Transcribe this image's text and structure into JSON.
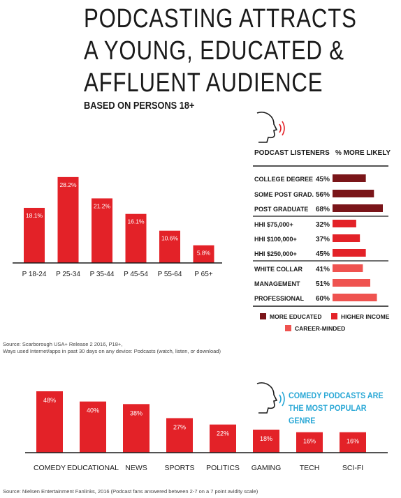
{
  "title_lines": [
    "PODCASTING ATTRACTS",
    "A YOUNG, EDUCATED &",
    "AFFLUENT AUDIENCE"
  ],
  "subtitle": "BASED ON PERSONS 18+",
  "colors": {
    "red": "#e32228",
    "dark_red": "#7a1519",
    "light_red": "#ef5350",
    "cyan": "#2aa8d6",
    "axis": "#1a1a1a"
  },
  "icons": [
    "head-sound-icon"
  ],
  "chart_data": [
    {
      "type": "bar",
      "categories": [
        "P 18-24",
        "P 25-34",
        "P 35-44",
        "P 45-54",
        "P 55-64",
        "P 65+"
      ],
      "values": [
        18.1,
        28.2,
        21.2,
        16.1,
        10.6,
        5.8
      ],
      "value_labels": [
        "18.1%",
        "28.2%",
        "21.2%",
        "16.1%",
        "10.6%",
        "5.8%"
      ],
      "ylim": [
        0,
        30
      ]
    },
    {
      "type": "bar",
      "orientation": "horizontal",
      "column_headers": [
        "PODCAST LISTENERS",
        "% MORE LIKELY"
      ],
      "categories": [
        "COLLEGE DEGREE",
        "SOME POST GRAD.",
        "POST GRADUATE",
        "HHI $75,000+",
        "HHI $100,000+",
        "HHI $250,000+",
        "WHITE COLLAR",
        "MANAGEMENT",
        "PROFESSIONAL"
      ],
      "values": [
        45,
        56,
        68,
        32,
        37,
        45,
        41,
        51,
        60
      ],
      "value_labels": [
        "45%",
        "56%",
        "68%",
        "32%",
        "37%",
        "45%",
        "41%",
        "51%",
        "60%"
      ],
      "groups": [
        "MORE EDUCATED",
        "MORE EDUCATED",
        "MORE EDUCATED",
        "HIGHER INCOME",
        "HIGHER INCOME",
        "HIGHER INCOME",
        "CAREER-MINDED",
        "CAREER-MINDED",
        "CAREER-MINDED"
      ],
      "legend": [
        {
          "name": "MORE EDUCATED",
          "color": "#7a1519"
        },
        {
          "name": "HIGHER INCOME",
          "color": "#e32228"
        },
        {
          "name": "CAREER-MINDED",
          "color": "#ef5350"
        }
      ],
      "xlim": [
        0,
        68
      ]
    },
    {
      "type": "bar",
      "categories": [
        "COMEDY",
        "EDUCATIONAL",
        "NEWS",
        "SPORTS",
        "POLITICS",
        "GAMING",
        "TECH",
        "SCI-FI"
      ],
      "values": [
        48,
        40,
        38,
        27,
        22,
        18,
        16,
        16
      ],
      "value_labels": [
        "48%",
        "40%",
        "38%",
        "27%",
        "22%",
        "18%",
        "16%",
        "16%"
      ],
      "annotation": "COMEDY PODCASTS ARE THE MOST POPULAR GENRE",
      "ylim": [
        0,
        48
      ]
    }
  ],
  "sources": {
    "first_line1": "Source: Scarborough USA+ Release 2 2016, P18+,",
    "first_line2": "Ways used Internet/apps in past 30 days on any device: Podcasts (watch, listen, or download)",
    "second": "Source: Nielsen Entertainment Fanlinks, 2016 (Podcast fans answered between 2-7 on a 7 point avidity scale)"
  }
}
